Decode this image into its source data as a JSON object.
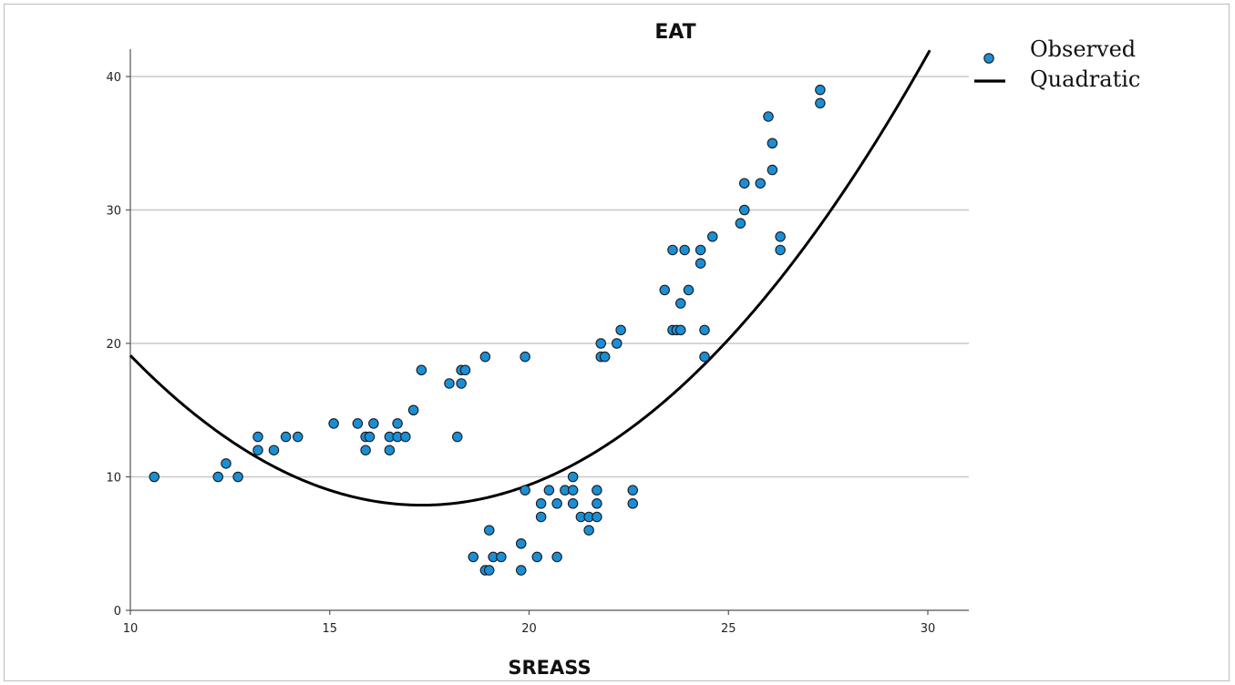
{
  "chart_data": {
    "type": "scatter",
    "title": "EAT",
    "xlabel": "SREASS",
    "ylabel": "",
    "xlim": [
      10,
      31
    ],
    "ylim": [
      0,
      42
    ],
    "xticks": [
      10,
      15,
      20,
      25,
      30
    ],
    "yticks": [
      0,
      10,
      20,
      30,
      40
    ],
    "grid": "horizontal",
    "legend_position": "top-right",
    "legend": [
      "Observed",
      "Quadratic"
    ],
    "colors": {
      "points": "#1a8fd6",
      "fit": "#000000",
      "grid": "#c8c8c8"
    },
    "fit": {
      "type": "quadratic",
      "a": 0.21,
      "b": -7.27,
      "c": 70.8
    },
    "series": [
      {
        "name": "Observed",
        "points": [
          [
            10.6,
            10
          ],
          [
            12.2,
            10
          ],
          [
            12.4,
            11
          ],
          [
            12.7,
            10
          ],
          [
            13.2,
            13
          ],
          [
            13.2,
            12
          ],
          [
            13.6,
            12
          ],
          [
            13.9,
            13
          ],
          [
            14.2,
            13
          ],
          [
            15.1,
            14
          ],
          [
            15.7,
            14
          ],
          [
            15.9,
            12
          ],
          [
            15.9,
            13
          ],
          [
            16.0,
            13
          ],
          [
            16.1,
            14
          ],
          [
            16.5,
            12
          ],
          [
            16.5,
            13
          ],
          [
            16.7,
            13
          ],
          [
            16.7,
            14
          ],
          [
            16.9,
            13
          ],
          [
            17.1,
            15
          ],
          [
            17.3,
            18
          ],
          [
            18.0,
            17
          ],
          [
            18.2,
            13
          ],
          [
            18.3,
            17
          ],
          [
            18.3,
            18
          ],
          [
            18.4,
            18
          ],
          [
            18.6,
            4
          ],
          [
            18.9,
            3
          ],
          [
            18.9,
            19
          ],
          [
            19.0,
            6
          ],
          [
            19.0,
            3
          ],
          [
            19.1,
            4
          ],
          [
            19.3,
            4
          ],
          [
            19.8,
            5
          ],
          [
            19.8,
            3
          ],
          [
            19.9,
            19
          ],
          [
            19.9,
            9
          ],
          [
            20.2,
            4
          ],
          [
            20.3,
            7
          ],
          [
            20.3,
            8
          ],
          [
            20.5,
            9
          ],
          [
            20.7,
            8
          ],
          [
            20.7,
            4
          ],
          [
            20.9,
            9
          ],
          [
            21.1,
            9
          ],
          [
            21.1,
            10
          ],
          [
            21.1,
            8
          ],
          [
            21.3,
            7
          ],
          [
            21.5,
            6
          ],
          [
            21.5,
            7
          ],
          [
            21.7,
            7
          ],
          [
            21.7,
            8
          ],
          [
            21.7,
            9
          ],
          [
            21.8,
            19
          ],
          [
            21.8,
            20
          ],
          [
            21.9,
            19
          ],
          [
            22.2,
            20
          ],
          [
            22.3,
            21
          ],
          [
            22.6,
            9
          ],
          [
            22.6,
            8
          ],
          [
            23.4,
            24
          ],
          [
            23.6,
            27
          ],
          [
            23.6,
            21
          ],
          [
            23.7,
            21
          ],
          [
            23.8,
            21
          ],
          [
            23.8,
            23
          ],
          [
            23.9,
            27
          ],
          [
            24.0,
            24
          ],
          [
            24.3,
            27
          ],
          [
            24.3,
            26
          ],
          [
            24.4,
            21
          ],
          [
            24.4,
            19
          ],
          [
            24.6,
            28
          ],
          [
            25.3,
            29
          ],
          [
            25.4,
            32
          ],
          [
            25.4,
            30
          ],
          [
            25.8,
            32
          ],
          [
            26.0,
            37
          ],
          [
            26.1,
            35
          ],
          [
            26.1,
            33
          ],
          [
            26.3,
            28
          ],
          [
            26.3,
            27
          ],
          [
            27.3,
            39
          ],
          [
            27.3,
            38
          ]
        ]
      }
    ]
  }
}
